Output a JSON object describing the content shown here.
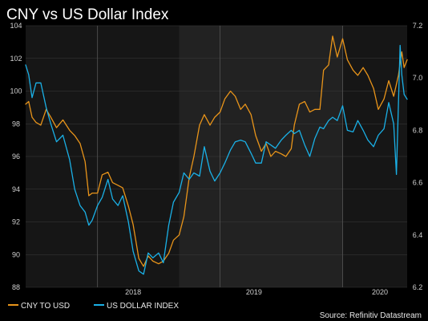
{
  "colors": {
    "background": "#000000",
    "plot_background": "#161616",
    "plot_shade": "#222222",
    "gridline": "#3a3a3a",
    "divider": "#555555",
    "cny_line": "#e8941a",
    "dxy_line": "#1ab0e6",
    "text": "#ffffff",
    "tick_text": "#d0d0d0"
  },
  "chart_data": {
    "type": "line",
    "title": "CNY vs US Dollar Index",
    "source": "Source: Refinitiv Datastream",
    "grid": true,
    "legend_placement": "bottom-left",
    "x_axis": {
      "start": "2017-03-01",
      "end": "2020-04-10",
      "tick_labels": [
        "2018",
        "2019",
        "2020"
      ],
      "tick_positions": [
        "2017-10-01",
        "2018-10-01",
        "2019-10-01"
      ],
      "shaded_periods": [
        [
          "2018-06-01",
          "2019-10-01"
        ]
      ]
    },
    "left_axis": {
      "ylim": [
        88,
        104
      ],
      "ticks": [
        88,
        90,
        92,
        94,
        96,
        98,
        100,
        102,
        104
      ],
      "tick_labels": [
        "88",
        "90",
        "92",
        "94",
        "96",
        "98",
        "100",
        "102",
        "104"
      ]
    },
    "right_axis": {
      "ylim": [
        6.2,
        7.2
      ],
      "ticks": [
        6.2,
        6.4,
        6.6,
        6.8,
        7.0,
        7.2
      ],
      "tick_labels": [
        "6.2",
        "6.4",
        "6.6",
        "6.8",
        "7.0",
        "7.2"
      ]
    },
    "series": [
      {
        "name": "CNY TO USD",
        "axis": "right",
        "color": "#e8941a",
        "points": [
          [
            "2017-03-01",
            6.9
          ],
          [
            "2017-03-10",
            6.91
          ],
          [
            "2017-03-20",
            6.85
          ],
          [
            "2017-04-01",
            6.83
          ],
          [
            "2017-04-15",
            6.82
          ],
          [
            "2017-05-01",
            6.88
          ],
          [
            "2017-05-15",
            6.85
          ],
          [
            "2017-06-01",
            6.81
          ],
          [
            "2017-06-20",
            6.84
          ],
          [
            "2017-07-10",
            6.8
          ],
          [
            "2017-07-25",
            6.78
          ],
          [
            "2017-08-10",
            6.75
          ],
          [
            "2017-08-25",
            6.68
          ],
          [
            "2017-09-05",
            6.55
          ],
          [
            "2017-09-15",
            6.56
          ],
          [
            "2017-10-01",
            6.56
          ],
          [
            "2017-10-15",
            6.63
          ],
          [
            "2017-11-01",
            6.64
          ],
          [
            "2017-11-15",
            6.6
          ],
          [
            "2017-12-01",
            6.59
          ],
          [
            "2017-12-15",
            6.58
          ],
          [
            "2018-01-01",
            6.51
          ],
          [
            "2018-01-15",
            6.44
          ],
          [
            "2018-02-01",
            6.31
          ],
          [
            "2018-02-15",
            6.28
          ],
          [
            "2018-03-01",
            6.32
          ],
          [
            "2018-03-15",
            6.3
          ],
          [
            "2018-04-01",
            6.29
          ],
          [
            "2018-04-15",
            6.3
          ],
          [
            "2018-05-01",
            6.33
          ],
          [
            "2018-05-15",
            6.38
          ],
          [
            "2018-06-01",
            6.4
          ],
          [
            "2018-06-15",
            6.47
          ],
          [
            "2018-07-01",
            6.62
          ],
          [
            "2018-07-15",
            6.7
          ],
          [
            "2018-08-01",
            6.82
          ],
          [
            "2018-08-15",
            6.86
          ],
          [
            "2018-09-01",
            6.82
          ],
          [
            "2018-09-15",
            6.85
          ],
          [
            "2018-10-01",
            6.87
          ],
          [
            "2018-10-15",
            6.92
          ],
          [
            "2018-11-01",
            6.95
          ],
          [
            "2018-11-15",
            6.93
          ],
          [
            "2018-12-01",
            6.88
          ],
          [
            "2018-12-15",
            6.9
          ],
          [
            "2019-01-01",
            6.86
          ],
          [
            "2019-01-15",
            6.78
          ],
          [
            "2019-02-01",
            6.72
          ],
          [
            "2019-02-15",
            6.75
          ],
          [
            "2019-03-01",
            6.7
          ],
          [
            "2019-03-15",
            6.72
          ],
          [
            "2019-04-01",
            6.71
          ],
          [
            "2019-04-15",
            6.7
          ],
          [
            "2019-05-01",
            6.73
          ],
          [
            "2019-05-10",
            6.82
          ],
          [
            "2019-05-25",
            6.9
          ],
          [
            "2019-06-10",
            6.91
          ],
          [
            "2019-06-25",
            6.87
          ],
          [
            "2019-07-10",
            6.88
          ],
          [
            "2019-07-25",
            6.88
          ],
          [
            "2019-08-05",
            7.03
          ],
          [
            "2019-08-20",
            7.05
          ],
          [
            "2019-09-01",
            7.16
          ],
          [
            "2019-09-15",
            7.08
          ],
          [
            "2019-10-01",
            7.15
          ],
          [
            "2019-10-15",
            7.07
          ],
          [
            "2019-11-01",
            7.03
          ],
          [
            "2019-11-15",
            7.01
          ],
          [
            "2019-12-01",
            7.04
          ],
          [
            "2019-12-15",
            7.01
          ],
          [
            "2020-01-01",
            6.96
          ],
          [
            "2020-01-15",
            6.88
          ],
          [
            "2020-02-01",
            6.92
          ],
          [
            "2020-02-15",
            6.99
          ],
          [
            "2020-03-01",
            6.93
          ],
          [
            "2020-03-15",
            7.01
          ],
          [
            "2020-03-25",
            7.1
          ],
          [
            "2020-04-01",
            7.04
          ],
          [
            "2020-04-10",
            7.07
          ]
        ]
      },
      {
        "name": "US DOLLAR INDEX",
        "axis": "left",
        "color": "#1ab0e6",
        "points": [
          [
            "2017-03-01",
            101.6
          ],
          [
            "2017-03-10",
            101.0
          ],
          [
            "2017-03-20",
            99.6
          ],
          [
            "2017-04-01",
            100.5
          ],
          [
            "2017-04-15",
            100.5
          ],
          [
            "2017-05-01",
            99.0
          ],
          [
            "2017-05-15",
            98.0
          ],
          [
            "2017-06-01",
            96.9
          ],
          [
            "2017-06-20",
            97.3
          ],
          [
            "2017-07-10",
            95.8
          ],
          [
            "2017-07-25",
            94.0
          ],
          [
            "2017-08-10",
            93.0
          ],
          [
            "2017-08-25",
            92.6
          ],
          [
            "2017-09-05",
            91.8
          ],
          [
            "2017-09-15",
            92.1
          ],
          [
            "2017-10-01",
            93.0
          ],
          [
            "2017-10-15",
            93.5
          ],
          [
            "2017-11-01",
            94.6
          ],
          [
            "2017-11-15",
            93.4
          ],
          [
            "2017-12-01",
            93.0
          ],
          [
            "2017-12-15",
            93.6
          ],
          [
            "2018-01-01",
            92.0
          ],
          [
            "2018-01-15",
            90.2
          ],
          [
            "2018-02-01",
            89.0
          ],
          [
            "2018-02-15",
            88.8
          ],
          [
            "2018-03-01",
            90.1
          ],
          [
            "2018-03-15",
            89.8
          ],
          [
            "2018-04-01",
            90.1
          ],
          [
            "2018-04-15",
            89.5
          ],
          [
            "2018-05-01",
            91.8
          ],
          [
            "2018-05-15",
            93.2
          ],
          [
            "2018-06-01",
            93.8
          ],
          [
            "2018-06-15",
            95.0
          ],
          [
            "2018-07-01",
            94.6
          ],
          [
            "2018-07-15",
            95.0
          ],
          [
            "2018-08-01",
            94.8
          ],
          [
            "2018-08-15",
            96.6
          ],
          [
            "2018-09-01",
            95.1
          ],
          [
            "2018-09-15",
            94.5
          ],
          [
            "2018-10-01",
            95.0
          ],
          [
            "2018-10-15",
            95.6
          ],
          [
            "2018-11-01",
            96.4
          ],
          [
            "2018-11-15",
            96.9
          ],
          [
            "2018-12-01",
            97.0
          ],
          [
            "2018-12-15",
            96.9
          ],
          [
            "2019-01-01",
            96.2
          ],
          [
            "2019-01-15",
            95.6
          ],
          [
            "2019-02-01",
            95.6
          ],
          [
            "2019-02-15",
            96.9
          ],
          [
            "2019-03-01",
            96.7
          ],
          [
            "2019-03-15",
            96.5
          ],
          [
            "2019-04-01",
            97.0
          ],
          [
            "2019-04-15",
            97.3
          ],
          [
            "2019-05-01",
            97.6
          ],
          [
            "2019-05-10",
            97.4
          ],
          [
            "2019-05-25",
            97.6
          ],
          [
            "2019-06-10",
            96.7
          ],
          [
            "2019-06-25",
            96.0
          ],
          [
            "2019-07-10",
            97.1
          ],
          [
            "2019-07-25",
            97.8
          ],
          [
            "2019-08-05",
            97.7
          ],
          [
            "2019-08-20",
            98.2
          ],
          [
            "2019-09-01",
            98.4
          ],
          [
            "2019-09-15",
            98.2
          ],
          [
            "2019-10-01",
            99.1
          ],
          [
            "2019-10-15",
            97.6
          ],
          [
            "2019-11-01",
            97.5
          ],
          [
            "2019-11-15",
            98.2
          ],
          [
            "2019-12-01",
            97.6
          ],
          [
            "2019-12-15",
            97.0
          ],
          [
            "2020-01-01",
            96.6
          ],
          [
            "2020-01-15",
            97.3
          ],
          [
            "2020-02-01",
            97.7
          ],
          [
            "2020-02-15",
            99.3
          ],
          [
            "2020-03-01",
            98.0
          ],
          [
            "2020-03-09",
            94.9
          ],
          [
            "2020-03-20",
            102.8
          ],
          [
            "2020-03-25",
            101.0
          ],
          [
            "2020-04-01",
            99.8
          ],
          [
            "2020-04-10",
            99.5
          ]
        ]
      }
    ]
  }
}
